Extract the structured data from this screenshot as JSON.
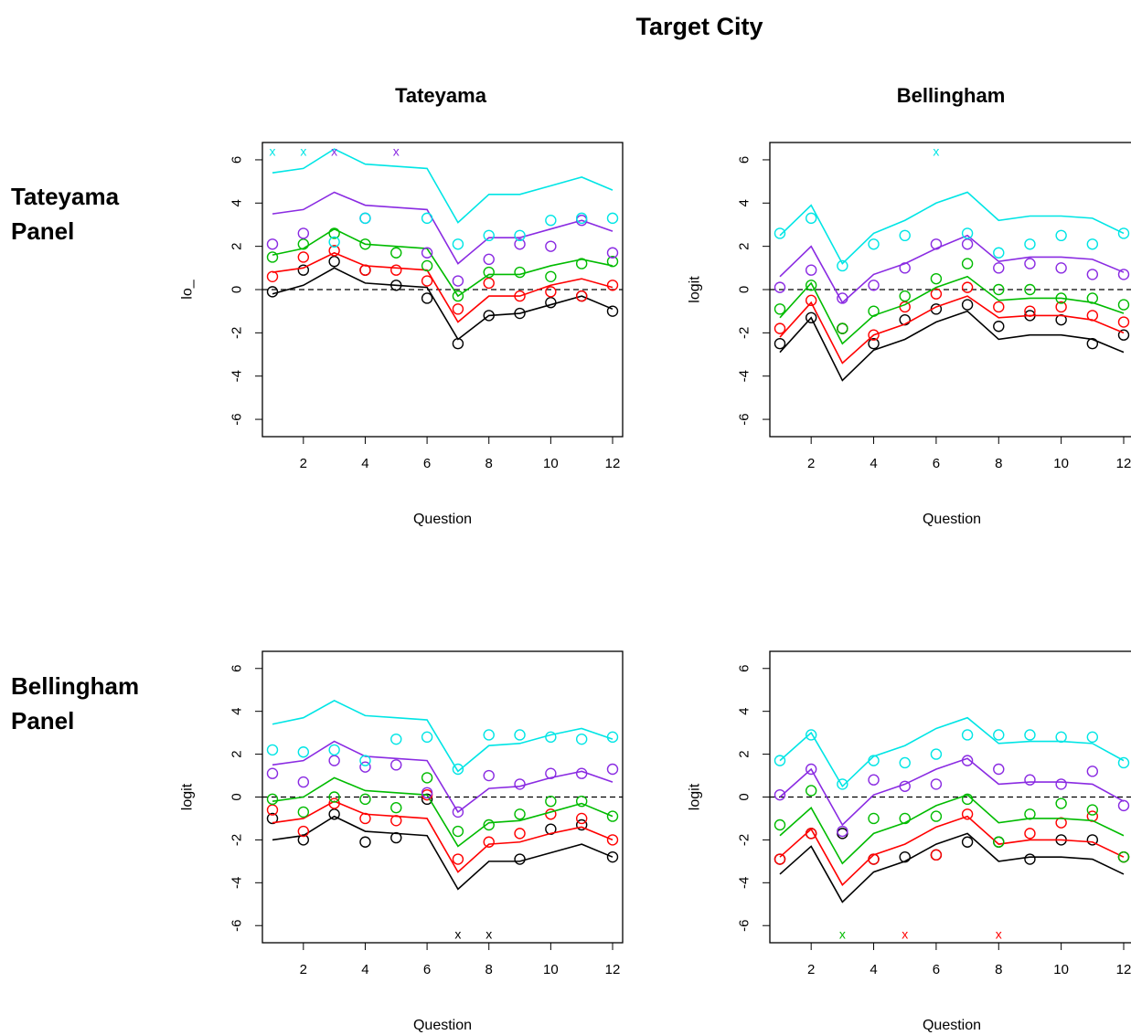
{
  "title": "Target City",
  "columns": [
    "Tateyama",
    "Bellingham"
  ],
  "rows": [
    {
      "line1": "Tateyama",
      "line2": "Panel"
    },
    {
      "line1": "Bellingham",
      "line2": "Panel"
    }
  ],
  "series_colors": [
    "#000000",
    "#ff0000",
    "#00bb00",
    "#8a2be2",
    "#00e5e5"
  ],
  "chart_data": [
    {
      "type": "line",
      "panel": "Tateyama Panel / Tateyama",
      "xlabel": "Question",
      "ylabel": "lo_",
      "xlim": [
        1,
        12
      ],
      "ylim": [
        -6.8,
        6.8
      ],
      "xticks": [
        2,
        4,
        6,
        8,
        10,
        12
      ],
      "yticks": [
        -6,
        -4,
        -2,
        0,
        2,
        4,
        6
      ],
      "x": [
        1,
        2,
        3,
        4,
        5,
        6,
        7,
        8,
        9,
        10,
        11,
        12
      ],
      "reference_line": 0,
      "series": [
        {
          "lines": [
            -0.2,
            0.2,
            1.0,
            0.3,
            0.2,
            0.1,
            -2.3,
            -1.2,
            -1.1,
            -0.7,
            -0.3,
            -0.9
          ],
          "points": [
            -0.1,
            0.9,
            1.3,
            0.9,
            0.2,
            -0.4,
            -2.5,
            -1.2,
            -1.1,
            -0.6,
            -0.3,
            -1.0
          ]
        },
        {
          "lines": [
            0.8,
            1.0,
            1.7,
            1.1,
            1.0,
            0.9,
            -1.5,
            -0.3,
            -0.3,
            0.2,
            0.5,
            0.1
          ],
          "points": [
            0.6,
            1.5,
            1.8,
            0.9,
            0.9,
            0.4,
            -0.9,
            0.3,
            -0.3,
            -0.1,
            -0.3,
            0.2
          ]
        },
        {
          "lines": [
            1.6,
            1.9,
            2.8,
            2.1,
            2.0,
            1.9,
            -0.3,
            0.7,
            0.7,
            1.1,
            1.4,
            1.1
          ],
          "points": [
            1.5,
            2.1,
            2.6,
            2.1,
            1.7,
            1.1,
            -0.3,
            0.8,
            0.8,
            0.6,
            1.2,
            1.3
          ]
        },
        {
          "lines": [
            3.5,
            3.7,
            4.5,
            3.9,
            3.8,
            3.7,
            1.2,
            2.4,
            2.4,
            2.8,
            3.2,
            2.7
          ],
          "points": [
            2.1,
            2.6,
            6.4,
            3.3,
            6.4,
            1.7,
            0.4,
            1.4,
            2.1,
            2.0,
            3.2,
            1.7
          ]
        },
        {
          "lines": [
            5.4,
            5.6,
            6.5,
            5.8,
            5.7,
            5.6,
            3.1,
            4.4,
            4.4,
            4.8,
            5.2,
            4.6
          ],
          "points": [
            6.4,
            6.4,
            2.2,
            3.3,
            null,
            3.3,
            2.1,
            2.5,
            2.5,
            3.2,
            3.3,
            3.3
          ]
        }
      ],
      "off_scale_marks": [
        {
          "x": 1,
          "series": 4,
          "side": "top"
        },
        {
          "x": 2,
          "series": 4,
          "side": "top"
        },
        {
          "x": 3,
          "series": 3,
          "side": "top"
        },
        {
          "x": 5,
          "series": 3,
          "side": "top"
        }
      ]
    },
    {
      "type": "line",
      "panel": "Tateyama Panel / Bellingham",
      "xlabel": "Question",
      "ylabel": "logit",
      "xlim": [
        1,
        12
      ],
      "ylim": [
        -6.8,
        6.8
      ],
      "xticks": [
        2,
        4,
        6,
        8,
        10,
        12
      ],
      "yticks": [
        -6,
        -4,
        -2,
        0,
        2,
        4,
        6
      ],
      "x": [
        1,
        2,
        3,
        4,
        5,
        6,
        7,
        8,
        9,
        10,
        11,
        12
      ],
      "reference_line": 0,
      "series": [
        {
          "lines": [
            -2.9,
            -1.3,
            -4.2,
            -2.8,
            -2.3,
            -1.5,
            -1.0,
            -2.3,
            -2.1,
            -2.1,
            -2.3,
            -2.9
          ],
          "points": [
            -2.5,
            -1.3,
            -1.8,
            -2.5,
            -1.4,
            -0.9,
            -0.7,
            -1.7,
            -1.2,
            -1.4,
            -2.5,
            -2.1
          ]
        },
        {
          "lines": [
            -2.2,
            -0.6,
            -3.4,
            -2.1,
            -1.6,
            -0.8,
            -0.3,
            -1.3,
            -1.2,
            -1.2,
            -1.4,
            -2.0
          ],
          "points": [
            -1.8,
            -0.5,
            -1.8,
            -2.1,
            -0.8,
            -0.2,
            0.1,
            -0.8,
            -1.0,
            -0.8,
            -1.2,
            -1.5
          ]
        },
        {
          "lines": [
            -1.3,
            0.3,
            -2.5,
            -1.2,
            -0.7,
            0.1,
            0.6,
            -0.5,
            -0.4,
            -0.4,
            -0.6,
            -1.1
          ],
          "points": [
            -0.9,
            0.2,
            -1.8,
            -1.0,
            -0.3,
            0.5,
            1.2,
            0.0,
            0.0,
            -0.4,
            -0.4,
            -0.7
          ]
        },
        {
          "lines": [
            0.6,
            2.0,
            -0.6,
            0.7,
            1.2,
            1.9,
            2.5,
            1.3,
            1.5,
            1.5,
            1.4,
            0.8
          ],
          "points": [
            0.1,
            0.9,
            -0.4,
            0.2,
            1.0,
            2.1,
            2.1,
            1.0,
            1.2,
            1.0,
            0.7,
            0.7
          ]
        },
        {
          "lines": [
            2.5,
            3.9,
            1.2,
            2.6,
            3.2,
            4.0,
            4.5,
            3.2,
            3.4,
            3.4,
            3.3,
            2.6
          ],
          "points": [
            2.6,
            3.3,
            1.1,
            2.1,
            2.5,
            6.4,
            2.6,
            1.7,
            2.1,
            2.5,
            2.1,
            2.6
          ]
        }
      ],
      "off_scale_marks": [
        {
          "x": 6,
          "series": 4,
          "side": "top"
        }
      ]
    },
    {
      "type": "line",
      "panel": "Bellingham Panel / Tateyama",
      "xlabel": "Question",
      "ylabel": "logit",
      "xlim": [
        1,
        12
      ],
      "ylim": [
        -6.8,
        6.8
      ],
      "xticks": [
        2,
        4,
        6,
        8,
        10,
        12
      ],
      "yticks": [
        -6,
        -4,
        -2,
        0,
        2,
        4,
        6
      ],
      "x": [
        1,
        2,
        3,
        4,
        5,
        6,
        7,
        8,
        9,
        10,
        11,
        12
      ],
      "reference_line": 0,
      "series": [
        {
          "lines": [
            -2.0,
            -1.8,
            -0.9,
            -1.6,
            -1.7,
            -1.8,
            -4.3,
            -3.0,
            -3.0,
            -2.6,
            -2.2,
            -2.8
          ],
          "points": [
            -1.0,
            -2.0,
            -0.8,
            -2.1,
            -1.9,
            -0.1,
            -6.4,
            -6.4,
            -2.9,
            -1.5,
            -1.3,
            -2.8
          ]
        },
        {
          "lines": [
            -1.2,
            -1.0,
            -0.2,
            -0.8,
            -0.9,
            -1.0,
            -3.5,
            -2.2,
            -2.1,
            -1.7,
            -1.4,
            -2.0
          ],
          "points": [
            -0.6,
            -1.6,
            -0.3,
            -1.0,
            -1.1,
            0.1,
            -2.9,
            -2.1,
            -1.7,
            -0.8,
            -1.0,
            -2.0
          ]
        },
        {
          "lines": [
            -0.2,
            0.0,
            0.9,
            0.3,
            0.2,
            0.1,
            -2.3,
            -1.2,
            -1.1,
            -0.7,
            -0.3,
            -0.9
          ],
          "points": [
            -0.1,
            -0.7,
            0.0,
            -0.1,
            -0.5,
            0.9,
            -1.6,
            -1.3,
            -0.8,
            -0.2,
            -0.2,
            -0.9
          ]
        },
        {
          "lines": [
            1.5,
            1.7,
            2.6,
            1.9,
            1.8,
            1.7,
            -0.7,
            0.4,
            0.5,
            0.9,
            1.2,
            0.7
          ],
          "points": [
            1.1,
            0.7,
            1.7,
            1.4,
            1.5,
            0.2,
            -0.7,
            1.0,
            0.6,
            1.1,
            1.1,
            1.3
          ]
        },
        {
          "lines": [
            3.4,
            3.7,
            4.5,
            3.8,
            3.7,
            3.6,
            1.2,
            2.4,
            2.5,
            2.9,
            3.2,
            2.7
          ],
          "points": [
            2.2,
            2.1,
            2.2,
            1.7,
            2.7,
            2.8,
            1.3,
            2.9,
            2.9,
            2.8,
            2.7,
            2.8
          ]
        }
      ],
      "off_scale_marks": [
        {
          "x": 7,
          "series": 0,
          "side": "bottom"
        },
        {
          "x": 8,
          "series": 0,
          "side": "bottom"
        }
      ]
    },
    {
      "type": "line",
      "panel": "Bellingham Panel / Bellingham",
      "xlabel": "Question",
      "ylabel": "logit",
      "xlim": [
        1,
        12
      ],
      "ylim": [
        -6.8,
        6.8
      ],
      "xticks": [
        2,
        4,
        6,
        8,
        10,
        12
      ],
      "yticks": [
        -6,
        -4,
        -2,
        0,
        2,
        4,
        6
      ],
      "x": [
        1,
        2,
        3,
        4,
        5,
        6,
        7,
        8,
        9,
        10,
        11,
        12
      ],
      "reference_line": 0,
      "series": [
        {
          "lines": [
            -3.6,
            -2.3,
            -4.9,
            -3.5,
            -3.0,
            -2.2,
            -1.7,
            -3.0,
            -2.8,
            -2.8,
            -2.9,
            -3.6
          ],
          "points": [
            -2.9,
            -1.7,
            -1.7,
            -2.9,
            -2.8,
            -2.7,
            -2.1,
            -2.1,
            -2.9,
            -2.0,
            -2.0,
            -2.8
          ]
        },
        {
          "lines": [
            -2.8,
            -1.5,
            -4.1,
            -2.7,
            -2.2,
            -1.4,
            -0.9,
            -2.2,
            -2.0,
            -2.0,
            -2.1,
            -2.8
          ],
          "points": [
            -2.9,
            -1.7,
            -6.4,
            -2.9,
            -6.4,
            -2.7,
            -0.8,
            -6.4,
            -1.7,
            -1.2,
            -0.9,
            -2.8
          ]
        },
        {
          "lines": [
            -1.8,
            -0.5,
            -3.1,
            -1.7,
            -1.2,
            -0.4,
            0.1,
            -1.2,
            -1.0,
            -1.0,
            -1.1,
            -1.8
          ],
          "points": [
            -1.3,
            0.3,
            -6.4,
            -1.0,
            -1.0,
            -0.9,
            -0.1,
            -2.1,
            -0.8,
            -0.3,
            -0.6,
            -2.8
          ]
        },
        {
          "lines": [
            0.0,
            1.3,
            -1.3,
            0.1,
            0.6,
            1.3,
            1.8,
            0.6,
            0.7,
            0.7,
            0.6,
            -0.2
          ],
          "points": [
            0.1,
            1.3,
            -1.6,
            0.8,
            0.5,
            0.6,
            1.7,
            1.3,
            0.8,
            0.6,
            1.2,
            -0.4
          ]
        },
        {
          "lines": [
            1.7,
            3.0,
            0.5,
            1.9,
            2.4,
            3.2,
            3.7,
            2.5,
            2.6,
            2.6,
            2.5,
            1.7
          ],
          "points": [
            1.7,
            2.9,
            0.6,
            1.7,
            1.6,
            2.0,
            2.9,
            2.9,
            2.9,
            2.8,
            2.8,
            1.6
          ]
        }
      ],
      "off_scale_marks": [
        {
          "x": 3,
          "series": 2,
          "side": "bottom"
        },
        {
          "x": 5,
          "series": 1,
          "side": "bottom"
        },
        {
          "x": 8,
          "series": 1,
          "side": "bottom"
        }
      ]
    }
  ]
}
